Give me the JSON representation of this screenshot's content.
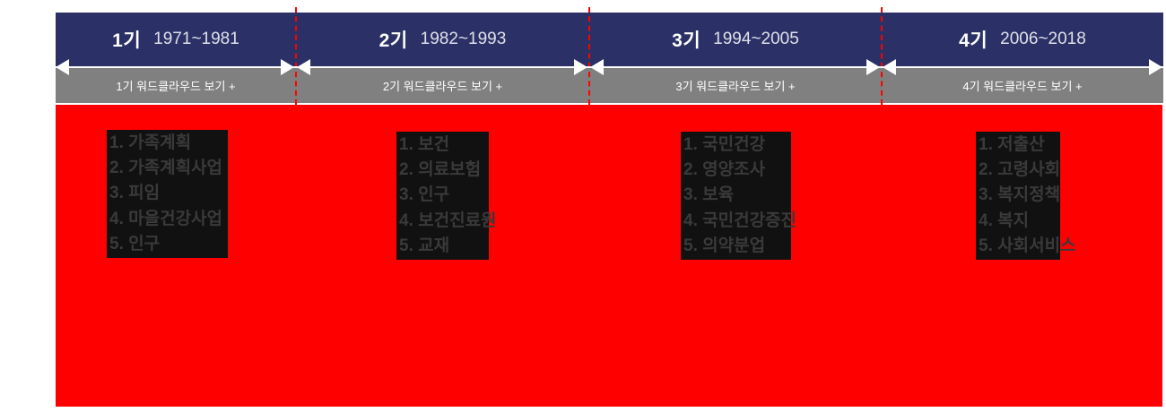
{
  "colors": {
    "navy": "#2b3166",
    "gray": "#808080",
    "red": "#ff0000",
    "box_bg": "#111111",
    "box_text": "#3a3a3a"
  },
  "sections": [
    {
      "period_label": "1기",
      "years": "1971~1981",
      "wordcloud_button": "1기 워드클라우드 보기 +",
      "keywords": [
        "1. 가족계획",
        "2. 가족계획사업",
        "3. 피임",
        "4. 마을건강사업",
        "5. 인구"
      ]
    },
    {
      "period_label": "2기",
      "years": "1982~1993",
      "wordcloud_button": "2기 워드클라우드 보기 +",
      "keywords": [
        "1. 보건",
        "2. 의료보험",
        "3. 인구",
        "4. 보건진료원",
        "5. 교재"
      ]
    },
    {
      "period_label": "3기",
      "years": "1994~2005",
      "wordcloud_button": "3기 워드클라우드 보기 +",
      "keywords": [
        "1. 국민건강",
        "2. 영양조사",
        "3. 보육",
        "4. 국민건강증진",
        "5. 의약분업"
      ]
    },
    {
      "period_label": "4기",
      "years": "2006~2018",
      "wordcloud_button": "4기 워드클라우드 보기 +",
      "keywords": [
        "1. 저출산",
        "2. 고령사회",
        "3. 복지정책",
        "4. 복지",
        "5. 사회서비스"
      ]
    }
  ]
}
